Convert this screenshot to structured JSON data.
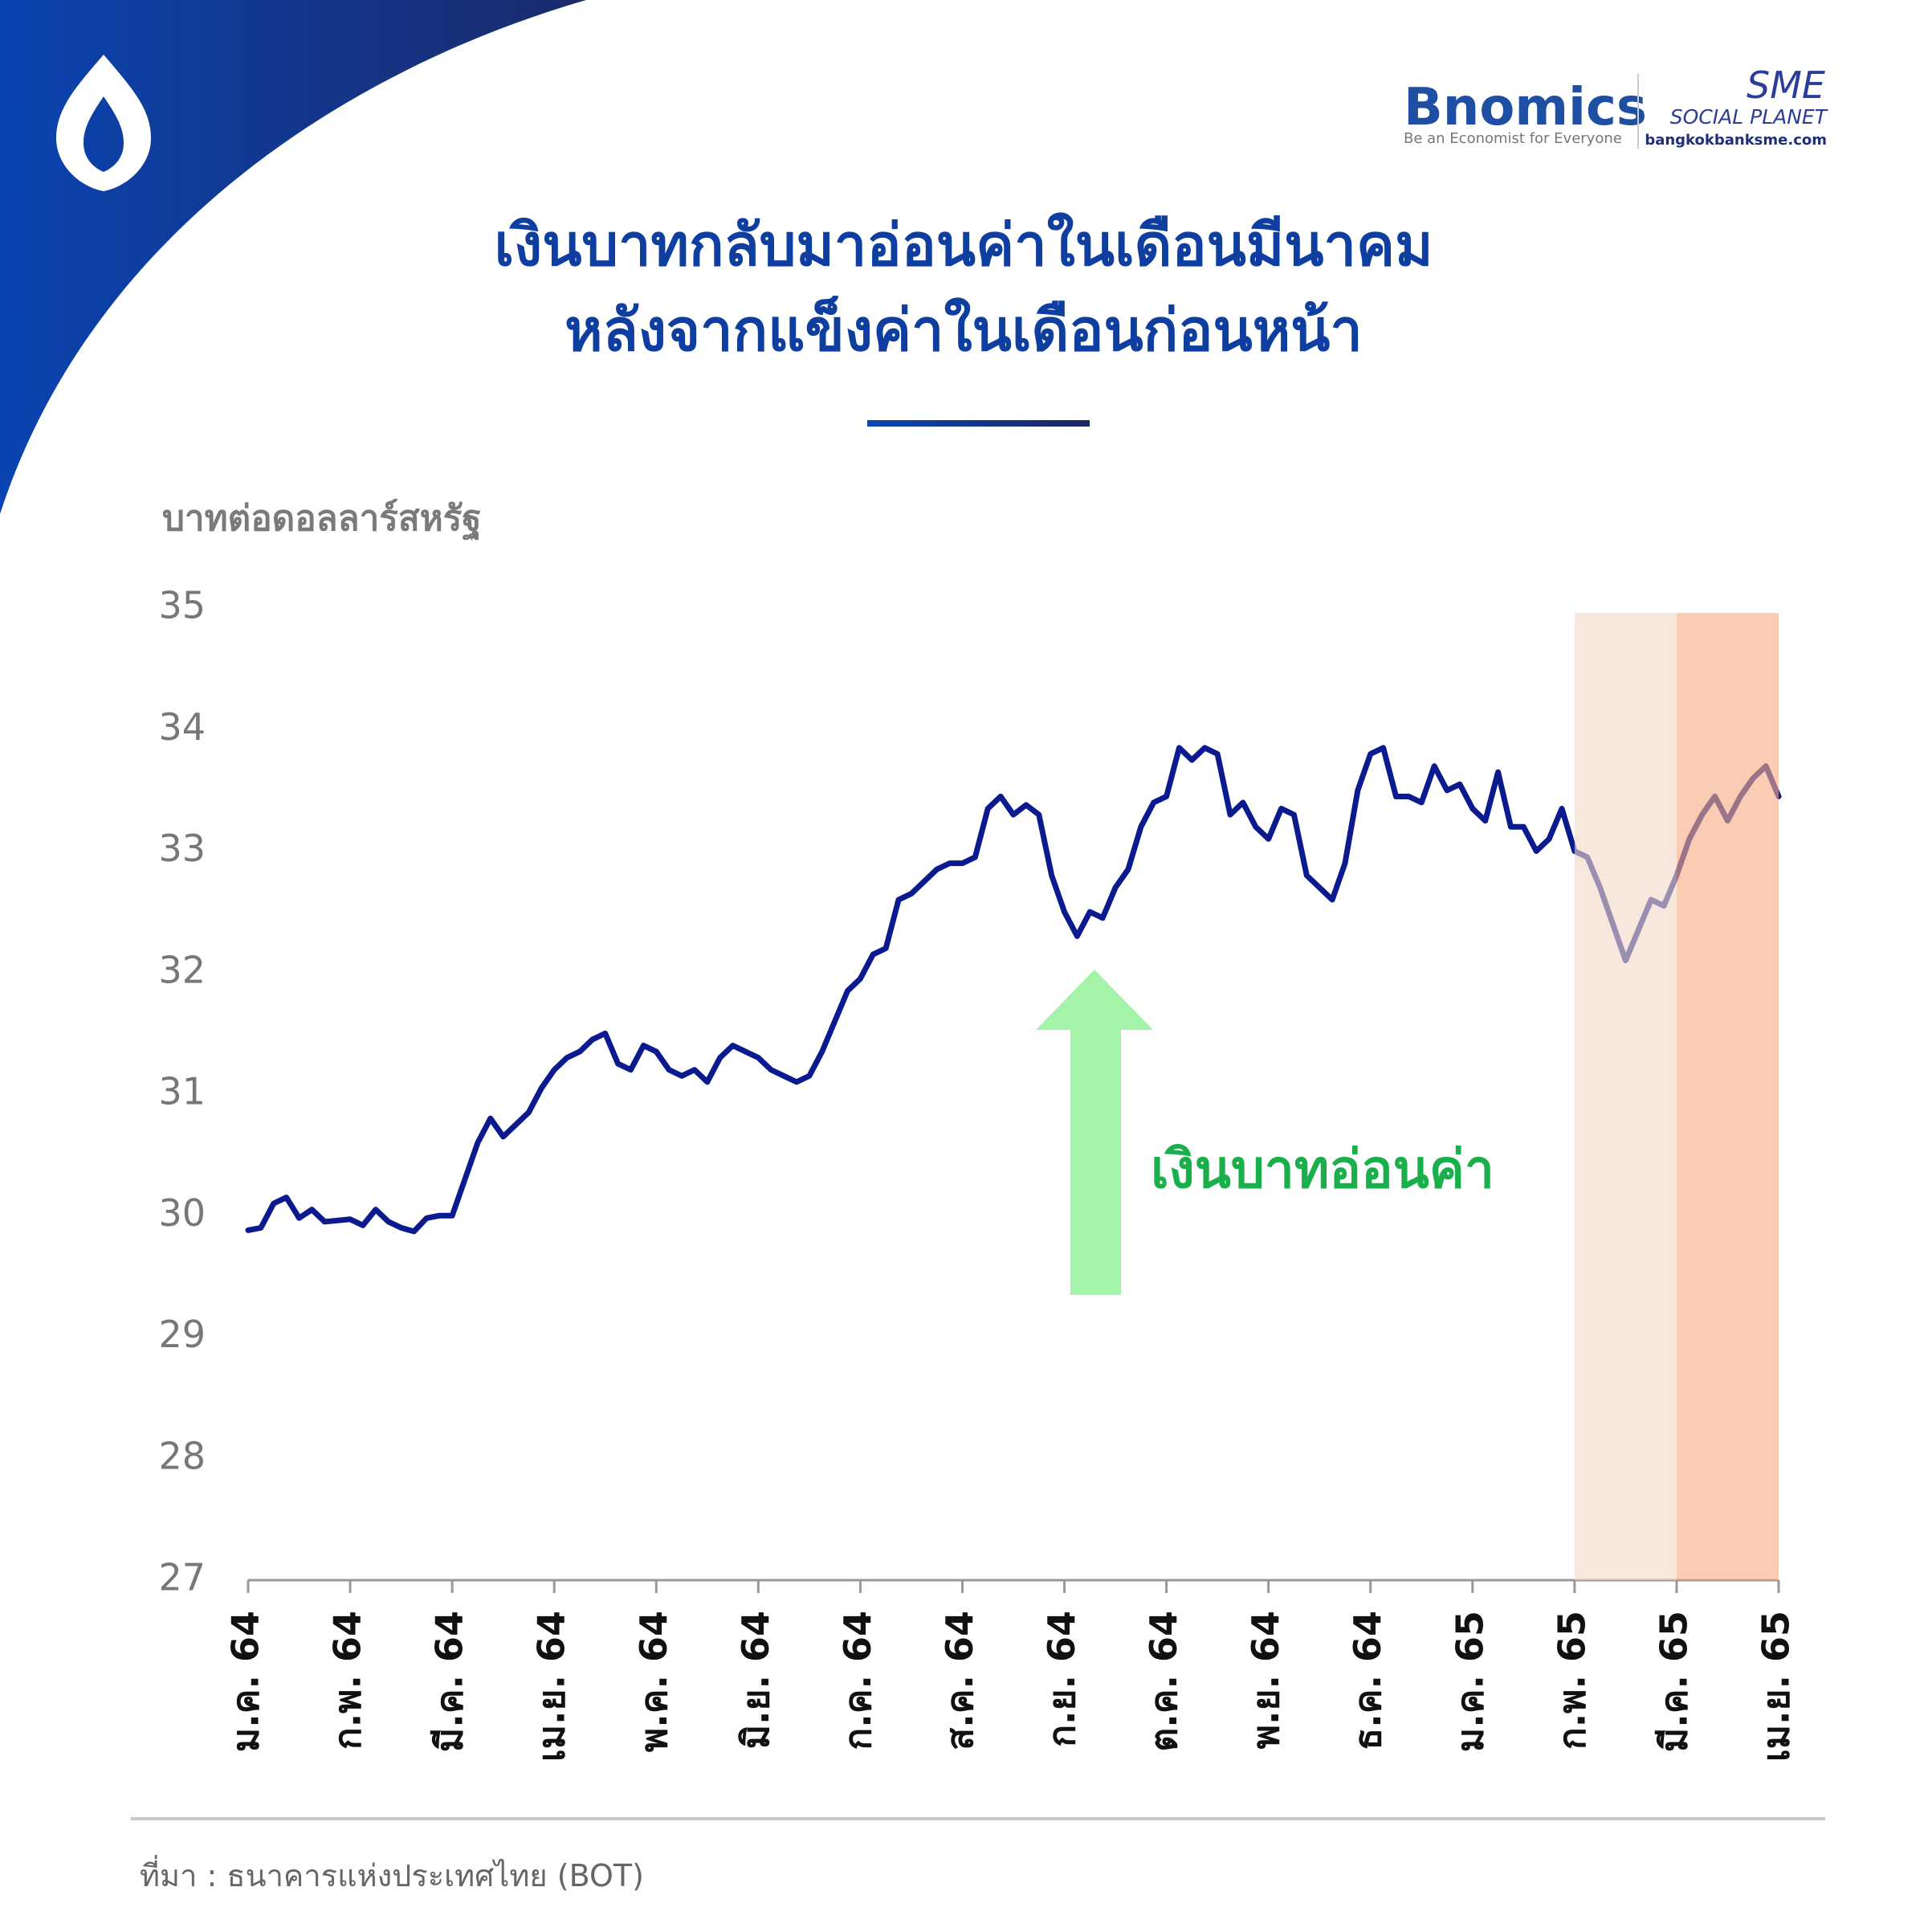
{
  "branding": {
    "name": "Bnomics",
    "tagline": "Be an Economist for Everyone",
    "partner": "SME",
    "partner_sub": "SOCIAL PLANET",
    "partner_url": "bangkokbanksme.com"
  },
  "chart_data": {
    "type": "line",
    "title": [
      "เงินบาทกลับมาอ่อนค่าในเดือนมีนาคม",
      "หลังจากแข็งค่าในเดือนก่อนหน้า"
    ],
    "y_label": "บาทต่อดอลลาร์สหรัฐ",
    "source": "ที่มา : ธนาคารแห่งประเทศไทย (BOT)",
    "annotations": [
      {
        "text": "เงินบาทอ่อนค่า"
      }
    ],
    "x": [
      0,
      0.125,
      0.25,
      0.375,
      0.5,
      0.625,
      0.75,
      0.875,
      1,
      1.125,
      1.25,
      1.375,
      1.5,
      1.625,
      1.75,
      1.875,
      2,
      2.125,
      2.25,
      2.375,
      2.5,
      2.625,
      2.75,
      2.875,
      3,
      3.125,
      3.25,
      3.375,
      3.5,
      3.625,
      3.75,
      3.875,
      4,
      4.125,
      4.25,
      4.375,
      4.5,
      4.625,
      4.75,
      4.875,
      5,
      5.125,
      5.25,
      5.375,
      5.5,
      5.625,
      5.75,
      5.875,
      6,
      6.125,
      6.25,
      6.375,
      6.5,
      6.625,
      6.75,
      6.875,
      7,
      7.125,
      7.25,
      7.375,
      7.5,
      7.625,
      7.75,
      7.875,
      8,
      8.125,
      8.25,
      8.375,
      8.5,
      8.625,
      8.75,
      8.875,
      9,
      9.125,
      9.25,
      9.375,
      9.5,
      9.625,
      9.75,
      9.875,
      10,
      10.125,
      10.25,
      10.375,
      10.5,
      10.625,
      10.75,
      10.875,
      11,
      11.125,
      11.25,
      11.375,
      11.5,
      11.625,
      11.75,
      11.875,
      12,
      12.125,
      12.25,
      12.375,
      12.5,
      12.625,
      12.75,
      12.875,
      13,
      13.125,
      13.25,
      13.375,
      13.5,
      13.625,
      13.75,
      13.875,
      14,
      14.125,
      14.25,
      14.375,
      14.5,
      14.625,
      14.75,
      14.875,
      15
    ],
    "series": [
      {
        "color": "#0b1a8e",
        "values": [
          29.88,
          29.9,
          30.1,
          30.15,
          29.98,
          30.05,
          29.95,
          29.96,
          29.97,
          29.92,
          30.05,
          29.95,
          29.9,
          29.87,
          29.98,
          30.0,
          30.0,
          30.3,
          30.6,
          30.8,
          30.65,
          30.75,
          30.85,
          31.05,
          31.2,
          31.3,
          31.35,
          31.45,
          31.5,
          31.25,
          31.2,
          31.4,
          31.35,
          31.2,
          31.15,
          31.2,
          31.1,
          31.3,
          31.4,
          31.35,
          31.3,
          31.2,
          31.15,
          31.1,
          31.15,
          31.35,
          31.6,
          31.85,
          31.95,
          32.15,
          32.2,
          32.6,
          32.65,
          32.75,
          32.85,
          32.9,
          32.9,
          32.95,
          33.35,
          33.45,
          33.3,
          33.38,
          33.3,
          32.8,
          32.5,
          32.3,
          32.5,
          32.45,
          32.7,
          32.85,
          33.2,
          33.4,
          33.45,
          33.85,
          33.75,
          33.85,
          33.8,
          33.3,
          33.4,
          33.2,
          33.1,
          33.35,
          33.3,
          32.8,
          32.7,
          32.6,
          32.9,
          33.5,
          33.8,
          33.85,
          33.45,
          33.45,
          33.4,
          33.7,
          33.5,
          33.55,
          33.35,
          33.25,
          33.65,
          33.2,
          33.2,
          33.0,
          33.1,
          33.35,
          33.0,
          32.95,
          32.7,
          32.4,
          32.1,
          32.35,
          32.6,
          32.55,
          32.8,
          33.1,
          33.3,
          33.45,
          33.25,
          33.45,
          33.6,
          33.7,
          33.45
        ]
      }
    ],
    "xlim": [
      0,
      15
    ],
    "xticks": [
      {
        "value": 0,
        "label": "ม.ค. 64"
      },
      {
        "value": 1,
        "label": "ก.พ. 64"
      },
      {
        "value": 2,
        "label": "มี.ค. 64"
      },
      {
        "value": 3,
        "label": "เม.ย. 64"
      },
      {
        "value": 4,
        "label": "พ.ค. 64"
      },
      {
        "value": 5,
        "label": "มิ.ย. 64"
      },
      {
        "value": 6,
        "label": "ก.ค. 64"
      },
      {
        "value": 7,
        "label": "ส.ค. 64"
      },
      {
        "value": 8,
        "label": "ก.ย. 64"
      },
      {
        "value": 9,
        "label": "ต.ค. 64"
      },
      {
        "value": 10,
        "label": "พ.ย. 64"
      },
      {
        "value": 11,
        "label": "ธ.ค. 64"
      },
      {
        "value": 12,
        "label": "ม.ค. 65"
      },
      {
        "value": 13,
        "label": "ก.พ. 65"
      },
      {
        "value": 14,
        "label": "มี.ค. 65"
      },
      {
        "value": 15,
        "label": "เม.ย. 65"
      }
    ],
    "ylim": [
      27,
      35
    ],
    "yticks": [
      27,
      28,
      29,
      30,
      31,
      32,
      33,
      34,
      35
    ],
    "grid": false,
    "highlights": [
      {
        "xlim": [
          13,
          14
        ],
        "color": "#f3d8c6"
      },
      {
        "xlim": [
          14,
          15
        ],
        "color": "#f6ad84"
      }
    ]
  }
}
